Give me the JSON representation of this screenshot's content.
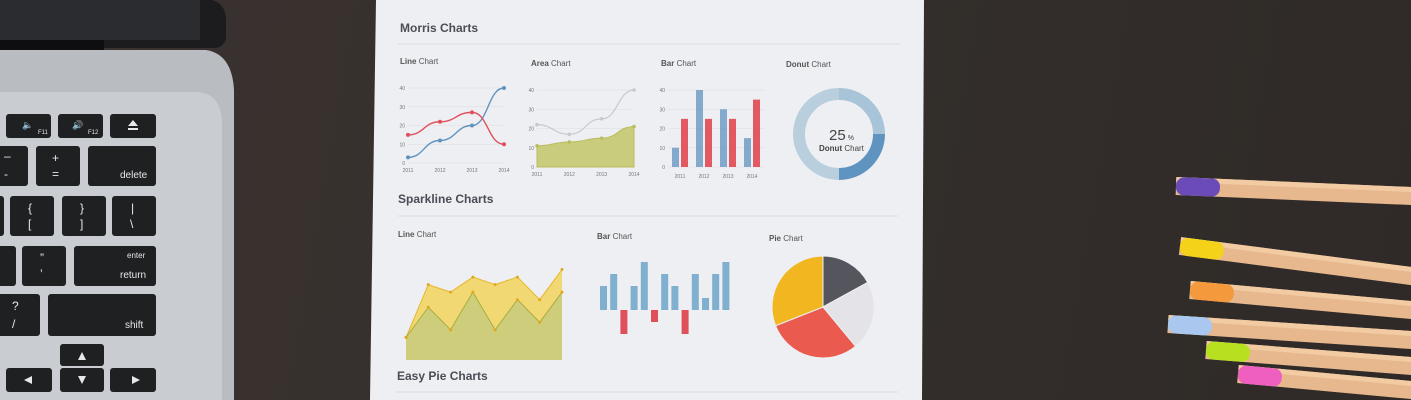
{
  "paper": {
    "sections": {
      "morris": "Morris Charts",
      "sparkline": "Sparkline Charts",
      "easy_pie": "Easy Pie Charts"
    },
    "titles": {
      "line": {
        "bold": "Line",
        "rest": "Chart"
      },
      "area": {
        "bold": "Area",
        "rest": "Chart"
      },
      "bar": {
        "bold": "Bar",
        "rest": "Chart"
      },
      "donut": {
        "bold": "Donut",
        "rest": "Chart"
      },
      "spark_line": {
        "bold": "Line",
        "rest": "Chart"
      },
      "spark_bar": {
        "bold": "Bar",
        "rest": "Chart"
      },
      "spark_pie": {
        "bold": "Pie",
        "rest": "Chart"
      }
    },
    "donut_center": {
      "value": "25",
      "unit": "%",
      "label_bold": "Donut",
      "label_rest": "Chart"
    }
  },
  "keyboard": {
    "keys": {
      "f11": "F11",
      "f12": "F12",
      "delete": "delete",
      "return_top": "enter",
      "return_bottom": "return",
      "shift": "shift",
      "plus": "+",
      "equals": "=",
      "minus": "–",
      "underscore": "-",
      "brace_open": "{",
      "bracket_open": "[",
      "brace_close": "}",
      "bracket_close": "]",
      "pipe": "|",
      "backslash": "\\",
      "dquote": "”",
      "squote": "’",
      "question": "?",
      "slash": "/"
    }
  },
  "colors": {
    "pencils": [
      "#6b4bb8",
      "#f5d21a",
      "#f49a3c",
      "#a9c7ef",
      "#b7e020",
      "#ef5fc0"
    ],
    "chart_blue": "#5f93c0",
    "chart_red": "#e0505a",
    "chart_green_fill": "#c9cc7c",
    "chart_yellow": "#f2c53d"
  },
  "chart_data": [
    {
      "type": "line",
      "x": [
        "2011",
        "2012",
        "2013",
        "2014"
      ],
      "yticks": [
        0,
        10,
        20,
        30,
        40
      ],
      "ylim": [
        0,
        40
      ],
      "series": [
        {
          "values": [
            3,
            12,
            20,
            40
          ]
        },
        {
          "values": [
            15,
            22,
            27,
            10
          ]
        }
      ]
    },
    {
      "type": "area",
      "x": [
        "2011",
        "2012",
        "2013",
        "2014"
      ],
      "yticks": [
        0,
        10,
        20,
        30,
        40
      ],
      "ylim": [
        0,
        40
      ],
      "series": [
        {
          "values": [
            22,
            17,
            25,
            40
          ]
        },
        {
          "values": [
            11,
            13,
            15,
            21
          ]
        }
      ]
    },
    {
      "type": "bar",
      "categories": [
        "2011",
        "2012",
        "2013",
        "2014"
      ],
      "yticks": [
        0,
        10,
        20,
        30,
        40
      ],
      "ylim": [
        0,
        40
      ],
      "series": [
        {
          "values": [
            10,
            40,
            30,
            15
          ]
        },
        {
          "values": [
            25,
            25,
            25,
            35
          ]
        }
      ]
    },
    {
      "type": "pie",
      "variant": "donut",
      "values": [
        25,
        25,
        50
      ]
    },
    {
      "type": "area",
      "variant": "sparkline",
      "series": [
        {
          "values": [
            3,
            10,
            9,
            11,
            10,
            11,
            8,
            12
          ]
        },
        {
          "values": [
            3,
            7,
            4,
            9,
            4,
            8,
            5,
            9
          ]
        }
      ]
    },
    {
      "type": "bar",
      "variant": "sparkline",
      "values": [
        4,
        6,
        -4,
        4,
        8,
        -2,
        6,
        4,
        -4,
        6,
        2,
        6,
        8
      ]
    },
    {
      "type": "pie",
      "values": [
        17,
        22,
        30,
        31
      ]
    }
  ]
}
